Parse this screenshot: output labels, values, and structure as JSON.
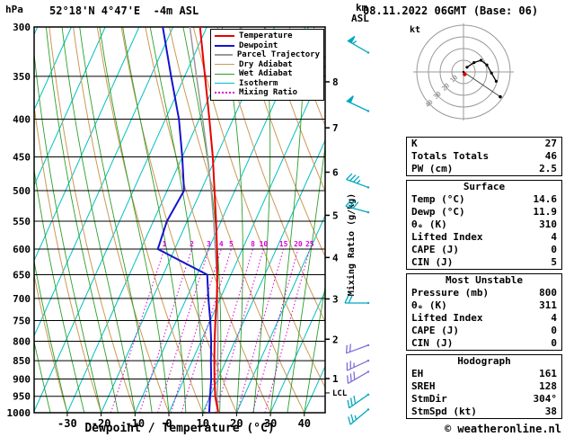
{
  "header": {
    "pressure_unit": "hPa",
    "title": "52°18'N 4°47'E  -4m ASL",
    "km_label": "km",
    "asl_label": "ASL",
    "datetime": "08.11.2022 06GMT (Base: 06)"
  },
  "axes": {
    "xlabel": "Dewpoint / Temperature (°C)",
    "x_ticks": [
      -30,
      -20,
      -10,
      0,
      10,
      20,
      30,
      40
    ],
    "pressure_ticks": [
      300,
      350,
      400,
      450,
      500,
      550,
      600,
      650,
      700,
      750,
      800,
      850,
      900,
      950,
      1000
    ],
    "km_ticks": [
      1,
      2,
      3,
      4,
      5,
      6,
      7,
      8
    ],
    "lcl_label": "LCL",
    "mixing_ratio_axis_label": "Mixing Ratio (g/kg)"
  },
  "legend": {
    "items": [
      {
        "label": "Temperature",
        "color": "#e80000",
        "width": 2,
        "dotted": false
      },
      {
        "label": "Dewpoint",
        "color": "#1414cc",
        "width": 2,
        "dotted": false
      },
      {
        "label": "Parcel Trajectory",
        "color": "#999999",
        "width": 2,
        "dotted": false
      },
      {
        "label": "Dry Adiabat",
        "color": "#cc9955",
        "width": 1,
        "dotted": false
      },
      {
        "label": "Wet Adiabat",
        "color": "#2aa02a",
        "width": 1,
        "dotted": false
      },
      {
        "label": "Isotherm",
        "color": "#00c0c0",
        "width": 1,
        "dotted": false
      },
      {
        "label": "Mixing Ratio",
        "color": "#dd00dd",
        "width": 2,
        "dotted": true
      }
    ]
  },
  "chart_data": {
    "type": "line",
    "subtype": "skew-t-log-p-sounding",
    "title": "52°18'N 4°47'E -4m ASL",
    "xlabel": "Dewpoint / Temperature (°C)",
    "ylabel": "hPa",
    "x_range_c": [
      -40,
      45
    ],
    "pressure_range_hpa": [
      300,
      1000
    ],
    "isotherm_step_c": 10,
    "mixing_ratio_lines_gkg": [
      1,
      2,
      3,
      4,
      5,
      8,
      10,
      15,
      20,
      25
    ],
    "lcl_pressure_hpa": 940,
    "colors": {
      "temperature": "#e80000",
      "dewpoint": "#1414cc",
      "parcel": "#999999",
      "dry_adiabat": "#cc9955",
      "wet_adiabat": "#2aa02a",
      "isotherm": "#00c0c0",
      "mixing_ratio": "#dd00dd"
    },
    "series": [
      {
        "name": "Parcel Trajectory",
        "color": "#999999",
        "width": 1.5,
        "points_p_t": [
          [
            1000,
            14.6
          ],
          [
            950,
            12
          ],
          [
            900,
            10
          ],
          [
            850,
            7.5
          ],
          [
            800,
            5
          ],
          [
            750,
            2.2
          ],
          [
            700,
            -0.8
          ],
          [
            650,
            -4.2
          ],
          [
            600,
            -8
          ],
          [
            550,
            -12.2
          ],
          [
            500,
            -17
          ],
          [
            450,
            -22.5
          ],
          [
            400,
            -29
          ],
          [
            350,
            -36.5
          ],
          [
            300,
            -45
          ]
        ]
      },
      {
        "name": "Temperature",
        "color": "#e80000",
        "width": 2,
        "points_p_t": [
          [
            1000,
            14.6
          ],
          [
            950,
            11.5
          ],
          [
            900,
            9
          ],
          [
            850,
            6.5
          ],
          [
            800,
            4
          ],
          [
            750,
            1.5
          ],
          [
            700,
            -1
          ],
          [
            650,
            -4
          ],
          [
            600,
            -7.5
          ],
          [
            550,
            -11.5
          ],
          [
            500,
            -16
          ],
          [
            450,
            -21
          ],
          [
            400,
            -27
          ],
          [
            350,
            -34
          ],
          [
            300,
            -42
          ]
        ]
      },
      {
        "name": "Dewpoint",
        "color": "#1414cc",
        "width": 2,
        "points_p_t": [
          [
            1000,
            11.9
          ],
          [
            950,
            10
          ],
          [
            900,
            8
          ],
          [
            850,
            5.5
          ],
          [
            800,
            3
          ],
          [
            750,
            0
          ],
          [
            700,
            -3.5
          ],
          [
            650,
            -7
          ],
          [
            600,
            -25
          ],
          [
            550,
            -26
          ],
          [
            500,
            -25
          ],
          [
            450,
            -30
          ],
          [
            400,
            -36
          ],
          [
            350,
            -44
          ],
          [
            300,
            -53
          ]
        ]
      }
    ],
    "wind_barbs": [
      {
        "p": 325,
        "spd": 55,
        "dir": 300,
        "color": "#00a8c0"
      },
      {
        "p": 390,
        "spd": 50,
        "dir": 295,
        "color": "#00a8c0"
      },
      {
        "p": 495,
        "spd": 35,
        "dir": 290,
        "color": "#00a8c0"
      },
      {
        "p": 535,
        "spd": 30,
        "dir": 285,
        "color": "#00a8c0"
      },
      {
        "p": 710,
        "spd": 20,
        "dir": 270,
        "color": "#00a8c0"
      },
      {
        "p": 810,
        "spd": 20,
        "dir": 250,
        "color": "#7e6fd8"
      },
      {
        "p": 850,
        "spd": 25,
        "dir": 245,
        "color": "#7e6fd8"
      },
      {
        "p": 880,
        "spd": 30,
        "dir": 240,
        "color": "#7e6fd8"
      },
      {
        "p": 945,
        "spd": 30,
        "dir": 235,
        "color": "#00a8c0"
      },
      {
        "p": 990,
        "spd": 25,
        "dir": 230,
        "color": "#00a8c0"
      }
    ]
  },
  "hodograph": {
    "kt_label": "kt",
    "rings_kt": [
      10,
      20,
      30,
      40
    ],
    "ring_labels": [
      10,
      20,
      30,
      40
    ],
    "trace_uv": [
      [
        3,
        4
      ],
      [
        9,
        8
      ],
      [
        15,
        10
      ],
      [
        20,
        6
      ],
      [
        24,
        -1
      ],
      [
        28,
        -8
      ]
    ],
    "origin_dot_uv": [
      1,
      -2
    ],
    "storm_motion": {
      "dir": 304,
      "spd": 38
    }
  },
  "tables": [
    {
      "header": null,
      "rows": [
        [
          "K",
          "27"
        ],
        [
          "Totals Totals",
          "46"
        ],
        [
          "PW (cm)",
          "2.5"
        ]
      ]
    },
    {
      "header": "Surface",
      "rows": [
        [
          "Temp (°C)",
          "14.6"
        ],
        [
          "Dewp (°C)",
          "11.9"
        ],
        [
          "θₑ (K)",
          "310"
        ],
        [
          "Lifted Index",
          "4"
        ],
        [
          "CAPE (J)",
          "0"
        ],
        [
          "CIN (J)",
          "5"
        ]
      ]
    },
    {
      "header": "Most Unstable",
      "rows": [
        [
          "Pressure (mb)",
          "800"
        ],
        [
          "θₑ (K)",
          "311"
        ],
        [
          "Lifted Index",
          "4"
        ],
        [
          "CAPE (J)",
          "0"
        ],
        [
          "CIN (J)",
          "0"
        ]
      ]
    },
    {
      "header": "Hodograph",
      "rows": [
        [
          "EH",
          "161"
        ],
        [
          "SREH",
          "128"
        ],
        [
          "StmDir",
          "304°"
        ],
        [
          "StmSpd (kt)",
          "38"
        ]
      ]
    }
  ],
  "footer": {
    "copyright": "© weatheronline.nl"
  }
}
